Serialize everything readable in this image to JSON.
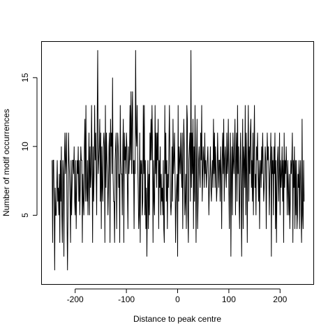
{
  "chart_data": {
    "type": "line",
    "xlabel": "Distance to peak centre",
    "ylabel": "Number of motif occurrences",
    "xlim": [
      -265,
      265
    ],
    "ylim": [
      0,
      17.6
    ],
    "x_ticks": [
      -200,
      -100,
      0,
      100,
      200
    ],
    "y_ticks": [
      5,
      10,
      15
    ],
    "x_tick_labels": [
      "-200",
      "-100",
      "0",
      "100",
      "200"
    ],
    "y_tick_labels": [
      "5",
      "10",
      "15"
    ],
    "grid": false,
    "line_color": "#000000",
    "x_start": -245,
    "x_step": 1,
    "values": [
      9,
      3,
      9,
      9,
      6,
      1,
      7,
      5,
      5,
      7,
      9,
      6,
      7,
      5,
      8,
      3,
      9,
      6,
      10,
      5,
      3,
      9,
      8,
      2,
      9,
      11,
      8,
      9,
      11,
      5,
      1,
      5,
      11,
      9,
      8,
      6,
      3,
      9,
      5,
      7,
      9,
      9,
      8,
      10,
      6,
      5,
      9,
      4,
      7,
      9,
      8,
      10,
      6,
      9,
      5,
      7,
      10,
      9,
      9,
      3,
      8,
      6,
      5,
      10,
      12,
      6,
      13,
      7,
      6,
      9,
      5,
      8,
      11,
      5,
      10,
      7,
      8,
      13,
      9,
      3,
      10,
      6,
      8,
      13,
      9,
      11,
      8,
      5,
      12,
      17,
      8,
      9,
      10,
      12,
      6,
      11,
      4,
      10,
      7,
      6,
      10,
      11,
      10,
      3,
      13,
      7,
      11,
      9,
      8,
      5,
      7,
      10,
      11,
      3,
      12,
      10,
      11,
      8,
      15,
      8,
      6,
      6,
      3,
      9,
      10,
      11,
      4,
      8,
      11,
      10,
      7,
      8,
      3,
      13,
      9,
      8,
      8,
      5,
      10,
      12,
      3,
      11,
      9,
      10,
      8,
      11,
      10,
      7,
      4,
      10,
      8,
      9,
      13,
      9,
      14,
      8,
      12,
      14,
      8,
      9,
      4,
      9,
      8,
      17,
      11,
      10,
      13,
      9,
      7,
      4,
      5,
      11,
      3,
      9,
      8,
      9,
      5,
      6,
      13,
      8,
      13,
      5,
      9,
      4,
      7,
      2,
      6,
      9,
      4,
      8,
      5,
      11,
      9,
      12,
      9,
      13,
      10,
      3,
      9,
      6,
      5,
      13,
      8,
      11,
      7,
      11,
      9,
      12,
      4,
      9,
      7,
      10,
      5,
      8,
      6,
      7,
      5,
      9,
      4,
      3,
      13,
      8,
      11,
      6,
      9,
      4,
      8,
      7,
      10,
      13,
      9,
      6,
      5,
      6,
      10,
      6,
      12,
      8,
      9,
      11,
      8,
      3,
      6,
      7,
      8,
      2,
      13,
      6,
      10,
      9,
      8,
      11,
      9,
      7,
      11,
      4,
      8,
      12,
      10,
      5,
      6,
      8,
      4,
      13,
      12,
      5,
      3,
      9,
      10,
      11,
      6,
      17,
      7,
      11,
      8,
      12,
      4,
      10,
      6,
      13,
      8,
      3,
      9,
      12,
      4,
      6,
      9,
      10,
      8,
      7,
      11,
      9,
      13,
      6,
      8,
      10,
      9,
      7,
      11,
      8,
      9,
      7,
      8,
      9,
      10,
      8,
      5,
      7,
      8,
      10,
      7,
      6,
      8,
      9,
      7,
      12,
      8,
      11,
      7,
      10,
      8,
      6,
      7,
      11,
      9,
      7,
      9,
      9,
      6,
      10,
      8,
      4,
      9,
      11,
      8,
      12,
      6,
      9,
      10,
      8,
      7,
      11,
      8,
      9,
      12,
      7,
      4,
      9,
      11,
      2,
      8,
      10,
      5,
      11,
      9,
      8,
      10,
      12,
      5,
      9,
      11,
      6,
      13,
      8,
      10,
      6,
      4,
      9,
      11,
      7,
      2,
      8,
      12,
      4,
      10,
      9,
      7,
      13,
      5,
      11,
      8,
      3,
      9,
      13,
      6,
      10,
      8,
      11,
      12,
      7,
      9,
      6,
      11,
      5,
      10,
      13,
      7,
      8,
      5,
      10,
      9,
      11,
      8,
      6,
      9,
      4,
      8,
      9,
      7,
      10,
      8,
      11,
      9,
      6,
      7,
      8,
      10,
      9,
      4,
      8,
      11,
      9,
      10,
      8,
      5,
      8,
      9,
      11,
      2,
      10,
      8,
      9,
      5,
      10,
      8,
      11,
      4,
      9,
      3,
      7,
      9,
      10,
      6,
      8,
      11,
      5,
      9,
      7,
      8,
      10,
      6,
      9,
      3,
      11,
      7,
      9,
      8,
      10,
      8,
      5,
      9,
      7,
      5,
      8,
      4,
      6,
      9,
      8,
      9,
      11,
      3,
      9,
      7,
      10,
      4,
      9,
      5,
      9,
      4,
      5,
      8,
      7,
      9,
      4,
      8,
      9,
      5,
      3,
      12,
      5,
      4,
      9,
      6
    ]
  }
}
